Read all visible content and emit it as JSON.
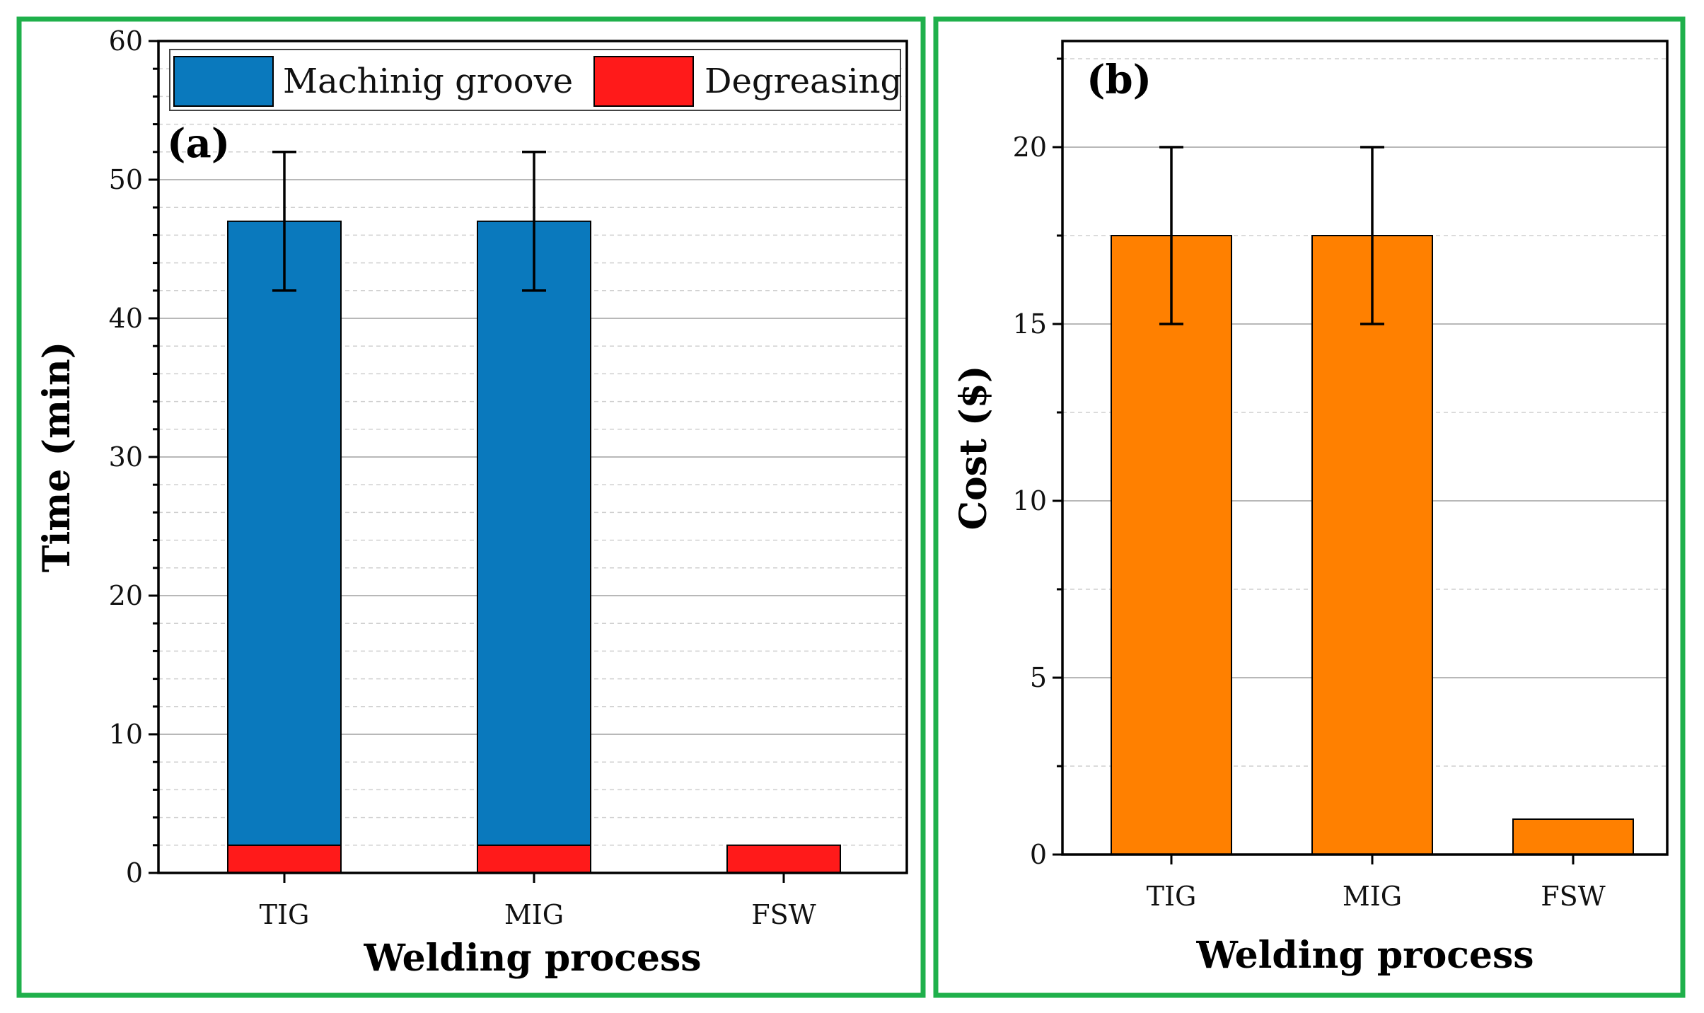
{
  "chart_data": [
    {
      "panel": "(a)",
      "type": "bar",
      "stacked": true,
      "categories": [
        "TIG",
        "MIG",
        "FSW"
      ],
      "series": [
        {
          "name": "Degreasing",
          "values": [
            2,
            2,
            2
          ],
          "color": "#ff1a1a"
        },
        {
          "name": "Machinig groove",
          "values": [
            45,
            45,
            0
          ],
          "color": "#0a79bd"
        }
      ],
      "error_bars": [
        5,
        5,
        null
      ],
      "xlabel": "Welding process",
      "ylabel": "Time (min)",
      "ylim": [
        0,
        60
      ],
      "yticks": [
        "0",
        "10",
        "20",
        "30",
        "40",
        "50",
        "60"
      ],
      "minor_step": 2,
      "legend_order": [
        "Machinig groove",
        "Degreasing"
      ],
      "legend_position": "top",
      "grid": true
    },
    {
      "panel": "(b)",
      "type": "bar",
      "stacked": false,
      "categories": [
        "TIG",
        "MIG",
        "FSW"
      ],
      "series": [
        {
          "name": "Cost",
          "values": [
            17.5,
            17.5,
            1
          ],
          "color": "#ff8000"
        }
      ],
      "error_bars": [
        2.5,
        2.5,
        null
      ],
      "xlabel": "Welding process",
      "ylabel": "Cost ($)",
      "ylim": [
        0,
        23
      ],
      "yticks": [
        "0",
        "5",
        "10",
        "15",
        "20"
      ],
      "minor_step": 2.5,
      "grid": true
    }
  ]
}
